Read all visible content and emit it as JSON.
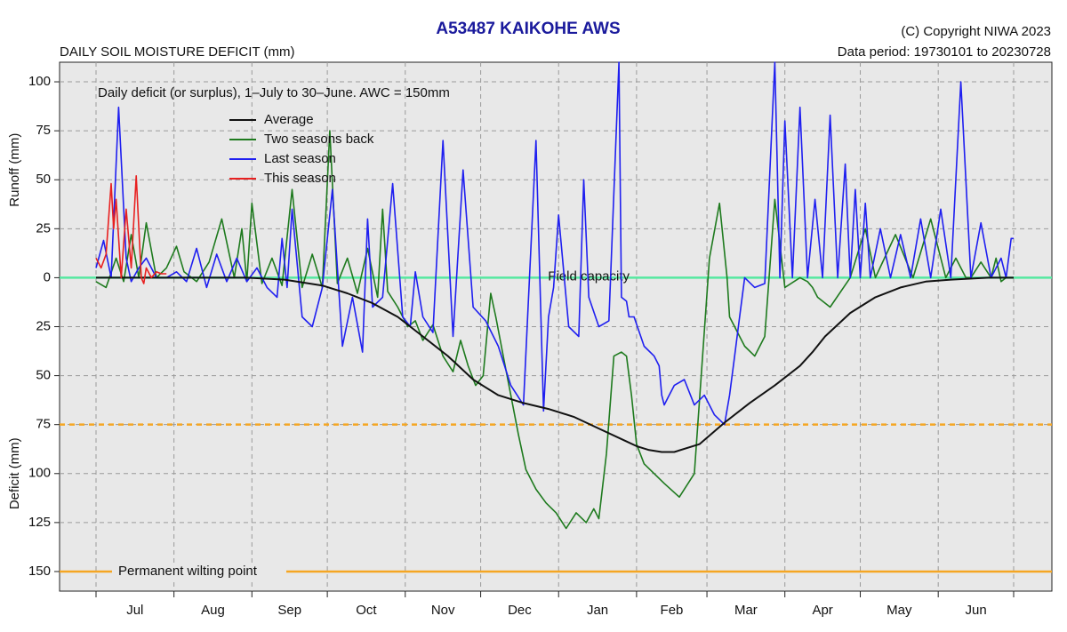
{
  "header": {
    "title": "A53487  KAIKOHE AWS",
    "subtitle": "DAILY SOIL MOISTURE DEFICIT (mm)",
    "copyright": "(C) Copyright NIWA  2023",
    "data_period": "Data period:  19730101  to  20230728"
  },
  "colors": {
    "title": "#1a1a9c",
    "panel_bg": "#e8e8e8",
    "grid": "#9a9a9a",
    "field_capacity": "#55e8a0",
    "thresholds": "#f5a623",
    "average": "#111111",
    "two_seasons_back": "#1e7a1e",
    "last_season": "#1f1ff0",
    "this_season": "#e82020"
  },
  "chart_data": {
    "type": "line",
    "title": "A53487  KAIKOHE AWS",
    "subtitle": "DAILY SOIL MOISTURE DEFICIT (mm)",
    "note": "Daily deficit (or surplus), 1–July to 30–June.  AWC = 150mm",
    "y_label_runoff": "Runoff (mm)",
    "y_label_deficit": "Deficit (mm)",
    "y_axis_inverted": true,
    "ylim": [
      -110,
      160
    ],
    "xlim": [
      0,
      365
    ],
    "y_ticks": [
      -100,
      -75,
      -50,
      -25,
      0,
      25,
      50,
      75,
      100,
      125,
      150
    ],
    "y_tick_labels": [
      "100",
      "75",
      "50",
      "25",
      "0",
      "25",
      "50",
      "75",
      "100",
      "125",
      "150"
    ],
    "month_ticks": [
      0,
      31,
      62,
      92,
      123,
      153,
      184,
      215,
      243,
      274,
      304,
      335,
      365
    ],
    "months": [
      "Jul",
      "Aug",
      "Sep",
      "Oct",
      "Nov",
      "Dec",
      "Jan",
      "Feb",
      "Mar",
      "Apr",
      "May",
      "Jun"
    ],
    "grid": true,
    "legend_position": "top-left",
    "reference_lines": {
      "field_capacity": {
        "value": 0,
        "label": "Field capacity"
      },
      "readily_available": {
        "value": 75
      },
      "permanent_wilting_point": {
        "value": 150,
        "label": "Permanent wilting point"
      }
    },
    "series": [
      {
        "name": "Average",
        "key": "average",
        "x": [
          0,
          30,
          60,
          75,
          90,
          100,
          110,
          120,
          130,
          140,
          150,
          155,
          160,
          170,
          180,
          190,
          200,
          210,
          215,
          220,
          225,
          230,
          240,
          250,
          260,
          270,
          280,
          285,
          290,
          300,
          310,
          320,
          330,
          340,
          355,
          365
        ],
        "y": [
          0,
          0,
          0,
          1,
          4,
          8,
          13,
          20,
          30,
          40,
          52,
          56,
          60,
          64,
          67,
          71,
          77,
          83,
          86,
          88,
          89,
          89,
          85,
          74,
          64,
          55,
          45,
          38,
          30,
          18,
          10,
          5,
          2,
          1,
          0,
          0
        ]
      },
      {
        "name": "Two seasons back",
        "key": "two_seasons_back",
        "x": [
          0,
          4,
          8,
          11,
          14,
          17,
          20,
          24,
          28,
          32,
          35,
          40,
          45,
          50,
          55,
          58,
          60,
          62,
          66,
          70,
          74,
          78,
          82,
          86,
          90,
          93,
          96,
          100,
          104,
          108,
          112,
          114,
          116,
          120,
          124,
          127,
          130,
          134,
          138,
          142,
          145,
          148,
          151,
          154,
          157,
          159,
          162,
          165,
          168,
          171,
          175,
          179,
          183,
          187,
          191,
          195,
          198,
          200,
          203,
          206,
          209,
          211,
          213,
          215,
          218,
          222,
          226,
          232,
          238,
          244,
          248,
          251,
          252,
          254,
          256,
          258,
          262,
          266,
          270,
          274,
          280,
          283,
          285,
          287,
          292,
          300,
          306,
          310,
          318,
          325,
          332,
          338,
          342,
          346,
          348,
          352,
          356,
          358,
          360,
          362,
          364,
          365
        ],
        "y": [
          2,
          5,
          -10,
          2,
          -22,
          0,
          -28,
          0,
          -5,
          -16,
          -3,
          2,
          -8,
          -30,
          0,
          -25,
          2,
          -38,
          3,
          -10,
          4,
          -45,
          5,
          -12,
          5,
          -75,
          3,
          -10,
          8,
          -15,
          10,
          -35,
          7,
          15,
          25,
          22,
          32,
          24,
          40,
          48,
          32,
          45,
          55,
          50,
          8,
          20,
          40,
          60,
          80,
          98,
          108,
          115,
          120,
          128,
          120,
          125,
          118,
          123,
          90,
          40,
          38,
          40,
          60,
          85,
          95,
          100,
          105,
          112,
          100,
          -10,
          -38,
          0,
          20,
          25,
          30,
          35,
          40,
          30,
          -40,
          5,
          0,
          2,
          5,
          10,
          15,
          0,
          -25,
          0,
          -22,
          0,
          -30,
          0,
          -10,
          0,
          0,
          -8,
          0,
          -10,
          2,
          0,
          0,
          0
        ]
      },
      {
        "name": "Last season",
        "key": "last_season",
        "x": [
          0,
          3,
          6,
          9,
          12,
          14,
          17,
          20,
          24,
          28,
          32,
          36,
          40,
          44,
          48,
          52,
          56,
          60,
          64,
          68,
          72,
          74,
          76,
          78,
          82,
          86,
          90,
          94,
          98,
          102,
          106,
          108,
          110,
          114,
          118,
          122,
          125,
          127,
          130,
          134,
          138,
          142,
          146,
          150,
          155,
          160,
          165,
          170,
          175,
          178,
          180,
          182,
          184,
          188,
          192,
          194,
          196,
          200,
          204,
          208,
          209,
          211,
          212,
          214,
          218,
          222,
          224,
          225,
          226,
          228,
          230,
          234,
          238,
          242,
          246,
          250,
          252,
          254,
          256,
          258,
          262,
          266,
          270,
          272,
          274,
          277,
          280,
          283,
          286,
          289,
          292,
          295,
          298,
          300,
          302,
          304,
          306,
          308,
          312,
          316,
          320,
          324,
          328,
          332,
          336,
          340,
          344,
          348,
          352,
          356,
          360,
          362,
          364,
          365
        ],
        "y": [
          -5,
          -19,
          0,
          -87,
          -10,
          2,
          -5,
          -10,
          0,
          0,
          -3,
          2,
          -15,
          5,
          -12,
          2,
          -10,
          2,
          -5,
          5,
          10,
          -20,
          5,
          -35,
          20,
          25,
          5,
          -45,
          35,
          10,
          38,
          -30,
          15,
          10,
          -48,
          20,
          25,
          -3,
          20,
          28,
          -70,
          30,
          -55,
          15,
          22,
          35,
          55,
          65,
          -70,
          68,
          20,
          5,
          -32,
          25,
          30,
          -50,
          10,
          25,
          22,
          -110,
          10,
          12,
          20,
          20,
          35,
          40,
          45,
          60,
          65,
          60,
          55,
          52,
          65,
          60,
          70,
          75,
          60,
          40,
          20,
          0,
          5,
          3,
          -110,
          0,
          -80,
          0,
          -87,
          0,
          -40,
          0,
          -83,
          0,
          -58,
          0,
          -45,
          0,
          -38,
          0,
          -25,
          0,
          -22,
          0,
          -30,
          0,
          -35,
          0,
          -100,
          0,
          -28,
          0,
          -10,
          0,
          -20,
          -20
        ]
      },
      {
        "name": "This season",
        "key": "this_season",
        "x": [
          0,
          2,
          4,
          6,
          7,
          8,
          10,
          12,
          14,
          16,
          18,
          19,
          20,
          22,
          24,
          26,
          28
        ],
        "y": [
          -10,
          -5,
          -12,
          -48,
          -25,
          -40,
          0,
          -35,
          -5,
          -52,
          0,
          3,
          -5,
          0,
          -3,
          -2,
          -2
        ]
      }
    ]
  }
}
